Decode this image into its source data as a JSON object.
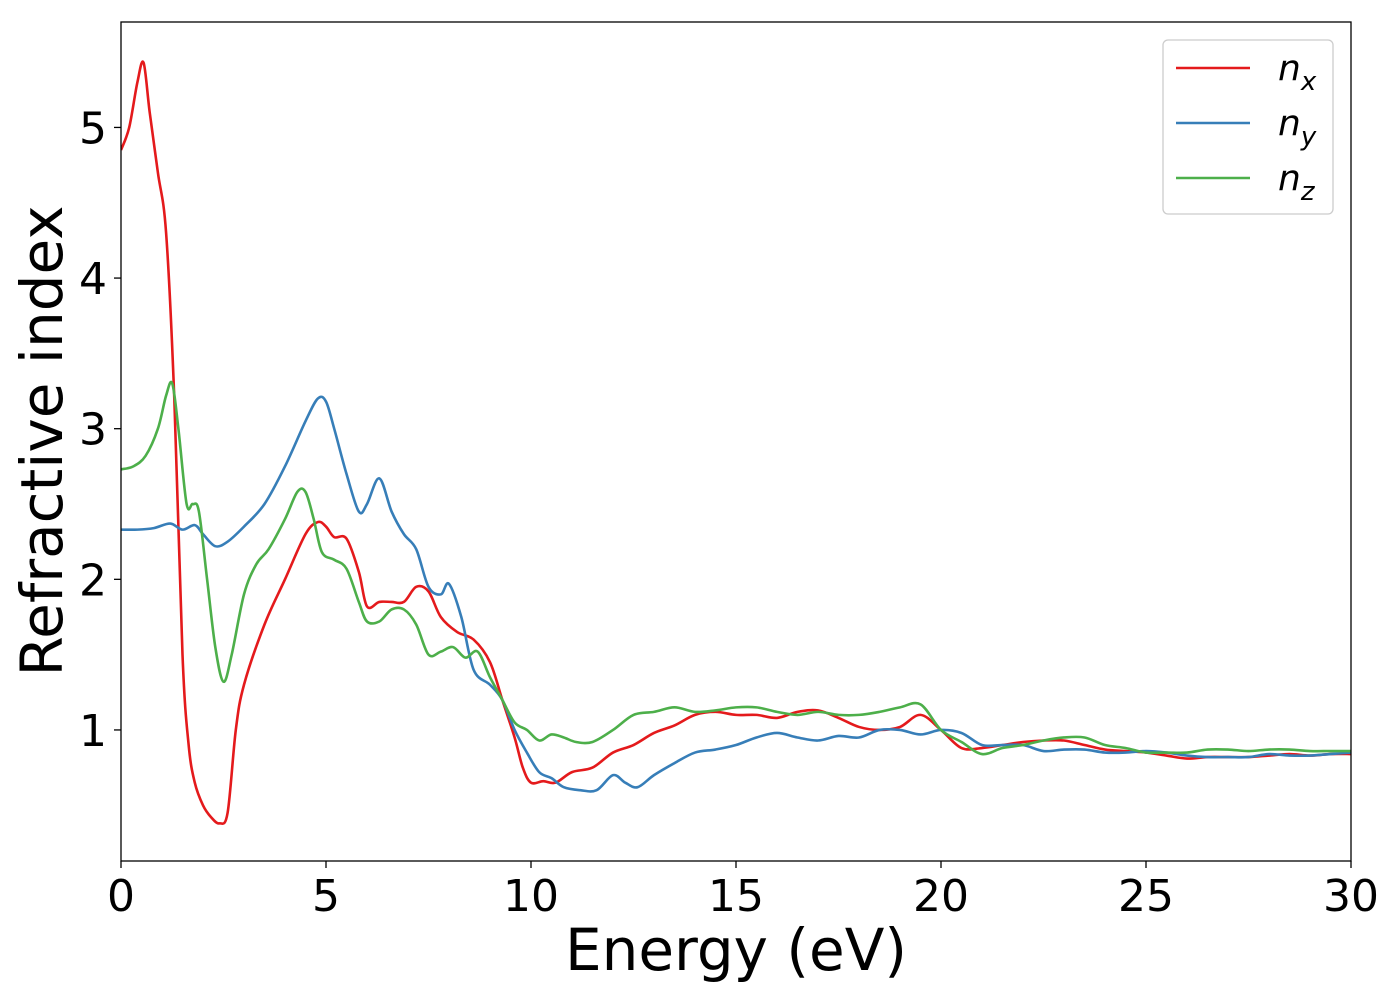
{
  "chart_data": {
    "type": "line",
    "title": "",
    "xlabel": "Energy (eV)",
    "ylabel": "Refractive index",
    "xlim": [
      0,
      30
    ],
    "ylim": [
      0.13,
      5.7
    ],
    "xticks": [
      0,
      5,
      10,
      15,
      20,
      25,
      30
    ],
    "yticks": [
      1,
      2,
      3,
      4,
      5
    ],
    "grid": false,
    "legend_position": "top-right",
    "series": [
      {
        "name": "n",
        "subscript": "x",
        "color": "#e41a1c",
        "x": [
          0,
          0.2,
          0.4,
          0.55,
          0.7,
          0.9,
          1.1,
          1.3,
          1.5,
          1.65,
          1.8,
          2.0,
          2.2,
          2.4,
          2.6,
          2.8,
          3.0,
          3.5,
          4.0,
          4.5,
          4.8,
          5.0,
          5.2,
          5.5,
          5.8,
          6.0,
          6.3,
          6.6,
          6.9,
          7.2,
          7.5,
          7.8,
          8.2,
          8.6,
          9.0,
          9.3,
          9.6,
          9.8,
          10.0,
          10.3,
          10.6,
          11.0,
          11.5,
          12.0,
          12.5,
          13.0,
          13.5,
          14.0,
          14.5,
          15.0,
          15.5,
          16.0,
          16.5,
          17.0,
          17.5,
          18.0,
          18.5,
          19.0,
          19.5,
          20.0,
          20.5,
          21.0,
          21.5,
          22.0,
          22.5,
          23.0,
          23.5,
          24.0,
          24.5,
          25.0,
          25.5,
          26.0,
          26.5,
          27.0,
          27.5,
          28.0,
          28.5,
          29.0,
          29.5,
          30.0
        ],
        "y": [
          4.85,
          5.0,
          5.3,
          5.43,
          5.1,
          4.7,
          4.3,
          3.2,
          1.5,
          0.9,
          0.65,
          0.5,
          0.42,
          0.38,
          0.45,
          1.0,
          1.3,
          1.7,
          2.0,
          2.3,
          2.38,
          2.35,
          2.28,
          2.27,
          2.05,
          1.82,
          1.85,
          1.85,
          1.85,
          1.95,
          1.92,
          1.75,
          1.65,
          1.6,
          1.45,
          1.2,
          0.95,
          0.75,
          0.65,
          0.66,
          0.65,
          0.72,
          0.75,
          0.85,
          0.9,
          0.98,
          1.03,
          1.1,
          1.12,
          1.1,
          1.1,
          1.08,
          1.12,
          1.13,
          1.08,
          1.02,
          1.0,
          1.02,
          1.1,
          1.0,
          0.88,
          0.88,
          0.9,
          0.92,
          0.93,
          0.93,
          0.9,
          0.87,
          0.86,
          0.85,
          0.83,
          0.81,
          0.82,
          0.82,
          0.82,
          0.83,
          0.84,
          0.83,
          0.84,
          0.84
        ]
      },
      {
        "name": "n",
        "subscript": "y",
        "color": "#377eb8",
        "x": [
          0,
          0.4,
          0.8,
          1.2,
          1.5,
          1.8,
          2.0,
          2.3,
          2.6,
          3.0,
          3.5,
          4.0,
          4.5,
          4.8,
          5.0,
          5.2,
          5.5,
          5.8,
          6.0,
          6.3,
          6.6,
          6.9,
          7.2,
          7.5,
          7.8,
          8.0,
          8.3,
          8.6,
          9.0,
          9.3,
          9.6,
          9.9,
          10.2,
          10.5,
          10.8,
          11.2,
          11.6,
          12.0,
          12.3,
          12.6,
          13.0,
          13.5,
          14.0,
          14.5,
          15.0,
          15.5,
          16.0,
          16.5,
          17.0,
          17.5,
          18.0,
          18.5,
          19.0,
          19.5,
          20.0,
          20.5,
          21.0,
          21.5,
          22.0,
          22.5,
          23.0,
          23.5,
          24.0,
          24.5,
          25.0,
          25.5,
          26.0,
          26.5,
          27.0,
          27.5,
          28.0,
          28.5,
          29.0,
          29.5,
          30.0
        ],
        "y": [
          2.33,
          2.33,
          2.34,
          2.37,
          2.33,
          2.36,
          2.3,
          2.22,
          2.25,
          2.35,
          2.5,
          2.75,
          3.05,
          3.2,
          3.18,
          3.0,
          2.7,
          2.45,
          2.5,
          2.67,
          2.45,
          2.3,
          2.2,
          1.95,
          1.9,
          1.97,
          1.75,
          1.4,
          1.3,
          1.2,
          1.0,
          0.85,
          0.72,
          0.68,
          0.62,
          0.6,
          0.6,
          0.7,
          0.65,
          0.62,
          0.7,
          0.78,
          0.85,
          0.87,
          0.9,
          0.95,
          0.98,
          0.95,
          0.93,
          0.96,
          0.95,
          1.0,
          1.0,
          0.97,
          1.0,
          0.98,
          0.9,
          0.9,
          0.9,
          0.86,
          0.87,
          0.87,
          0.85,
          0.85,
          0.86,
          0.85,
          0.83,
          0.82,
          0.82,
          0.82,
          0.84,
          0.83,
          0.83,
          0.84,
          0.85
        ]
      },
      {
        "name": "n",
        "subscript": "z",
        "color": "#4daf4a",
        "x": [
          0,
          0.3,
          0.6,
          0.9,
          1.1,
          1.25,
          1.4,
          1.6,
          1.75,
          1.9,
          2.1,
          2.3,
          2.5,
          2.7,
          3.0,
          3.3,
          3.6,
          4.0,
          4.3,
          4.5,
          4.7,
          4.9,
          5.2,
          5.5,
          5.8,
          6.0,
          6.3,
          6.6,
          6.9,
          7.2,
          7.5,
          7.8,
          8.1,
          8.4,
          8.7,
          9.0,
          9.3,
          9.6,
          9.9,
          10.2,
          10.5,
          10.8,
          11.1,
          11.5,
          12.0,
          12.5,
          13.0,
          13.5,
          14.0,
          14.5,
          15.0,
          15.5,
          16.0,
          16.5,
          17.0,
          17.5,
          18.0,
          18.5,
          19.0,
          19.5,
          20.0,
          20.5,
          21.0,
          21.5,
          22.0,
          22.5,
          23.0,
          23.5,
          24.0,
          24.5,
          25.0,
          25.5,
          26.0,
          26.5,
          27.0,
          27.5,
          28.0,
          28.5,
          29.0,
          29.5,
          30.0
        ],
        "y": [
          2.73,
          2.75,
          2.82,
          3.0,
          3.22,
          3.3,
          3.0,
          2.5,
          2.5,
          2.45,
          2.0,
          1.55,
          1.32,
          1.5,
          1.9,
          2.1,
          2.2,
          2.4,
          2.58,
          2.58,
          2.4,
          2.18,
          2.13,
          2.07,
          1.85,
          1.72,
          1.72,
          1.8,
          1.8,
          1.7,
          1.5,
          1.52,
          1.55,
          1.48,
          1.52,
          1.35,
          1.2,
          1.05,
          1.0,
          0.93,
          0.97,
          0.95,
          0.92,
          0.92,
          1.0,
          1.1,
          1.12,
          1.15,
          1.12,
          1.13,
          1.15,
          1.15,
          1.12,
          1.1,
          1.12,
          1.1,
          1.1,
          1.12,
          1.15,
          1.17,
          1.0,
          0.92,
          0.84,
          0.88,
          0.9,
          0.93,
          0.95,
          0.95,
          0.9,
          0.88,
          0.85,
          0.85,
          0.85,
          0.87,
          0.87,
          0.86,
          0.87,
          0.87,
          0.86,
          0.86,
          0.86
        ]
      }
    ]
  }
}
